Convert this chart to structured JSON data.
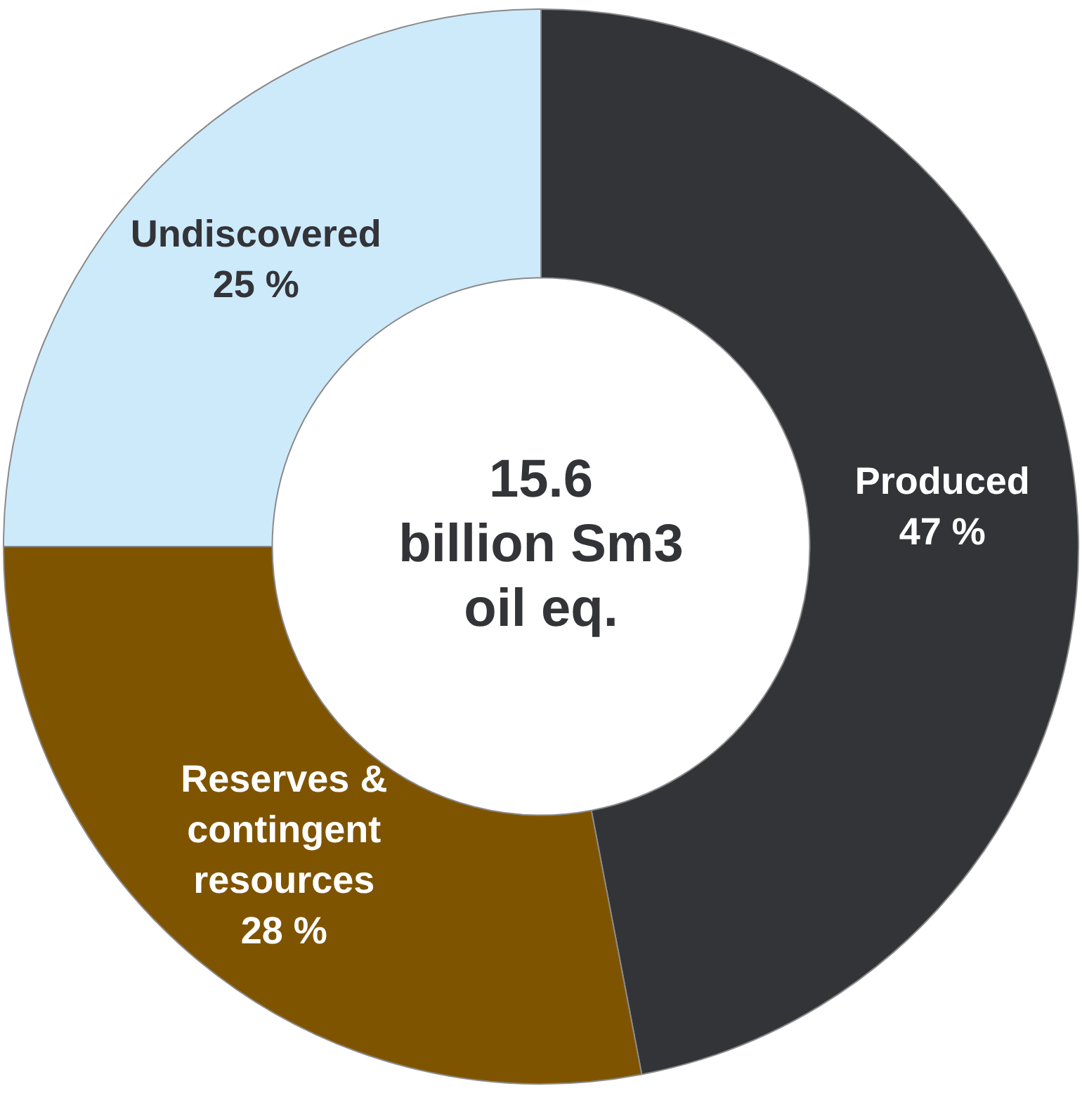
{
  "chart_data": {
    "type": "donut",
    "annotations": [
      "15.6\nbillion Sm3\noil eq."
    ],
    "categories": [
      "Produced",
      "Reserves & contingent resources",
      "Undiscovered"
    ],
    "values": [
      47,
      28,
      25
    ],
    "value_labels": [
      "47 %",
      "28 %",
      "25 %"
    ],
    "colors": [
      "#333438",
      "#7f5400",
      "#cdeafb"
    ],
    "legend": false
  }
}
